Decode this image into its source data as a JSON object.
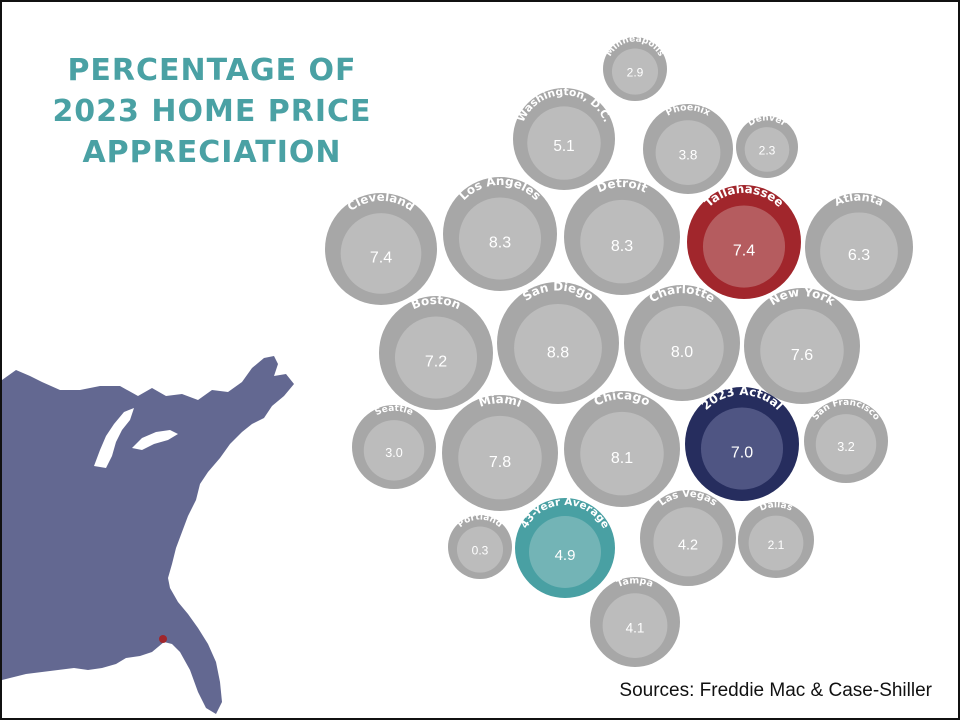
{
  "title_lines": [
    "PERCENTAGE OF",
    "2023 HOME PRICE",
    "APPRECIATION"
  ],
  "source": "Sources: Freddie Mac & Case-Shiller",
  "colors": {
    "title": "#4aa1a4",
    "bubble_outer": "#a7a7a7",
    "bubble_inner": "#bcbcbc",
    "highlight_tallahassee_outer": "#a1262c",
    "highlight_tallahassee_inner": "#b55c5f",
    "highlight_actual_outer": "#262d5e",
    "highlight_actual_inner": "#4f5583",
    "highlight_average_outer": "#49a0a3",
    "highlight_average_inner": "#73b4b6",
    "map_fill": "#636891",
    "map_marker": "#a1262c"
  },
  "icons": {
    "map": "us-east-map-icon",
    "marker": "tallahassee-marker-icon"
  },
  "chart_data": {
    "type": "bubble",
    "title": "PERCENTAGE OF 2023 HOME PRICE APPRECIATION",
    "unit": "%",
    "points": [
      {
        "name": "Minneapolis",
        "value": 2.9
      },
      {
        "name": "Washington, D.C.",
        "value": 5.1
      },
      {
        "name": "Phoenix",
        "value": 3.8
      },
      {
        "name": "Denver",
        "value": 2.3
      },
      {
        "name": "Cleveland",
        "value": 7.4
      },
      {
        "name": "Los Angeles",
        "value": 8.3
      },
      {
        "name": "Detroit",
        "value": 8.3
      },
      {
        "name": "Tallahassee",
        "value": 7.4,
        "highlight": "tallahassee"
      },
      {
        "name": "Atlanta",
        "value": 6.3
      },
      {
        "name": "Boston",
        "value": 7.2
      },
      {
        "name": "San Diego",
        "value": 8.8
      },
      {
        "name": "Charlotte",
        "value": 8.0
      },
      {
        "name": "New York",
        "value": 7.6
      },
      {
        "name": "Seattle",
        "value": 3.0
      },
      {
        "name": "Miami",
        "value": 7.8
      },
      {
        "name": "Chicago",
        "value": 8.1
      },
      {
        "name": "2023 Actual",
        "value": 7.0,
        "highlight": "actual"
      },
      {
        "name": "San Francisco",
        "value": 3.2
      },
      {
        "name": "Portland",
        "value": 0.3
      },
      {
        "name": "43-Year Average",
        "value": 4.9,
        "highlight": "average"
      },
      {
        "name": "Las Vegas",
        "value": 4.2
      },
      {
        "name": "Dallas",
        "value": 2.1
      },
      {
        "name": "Tampa",
        "value": 4.1
      }
    ]
  }
}
